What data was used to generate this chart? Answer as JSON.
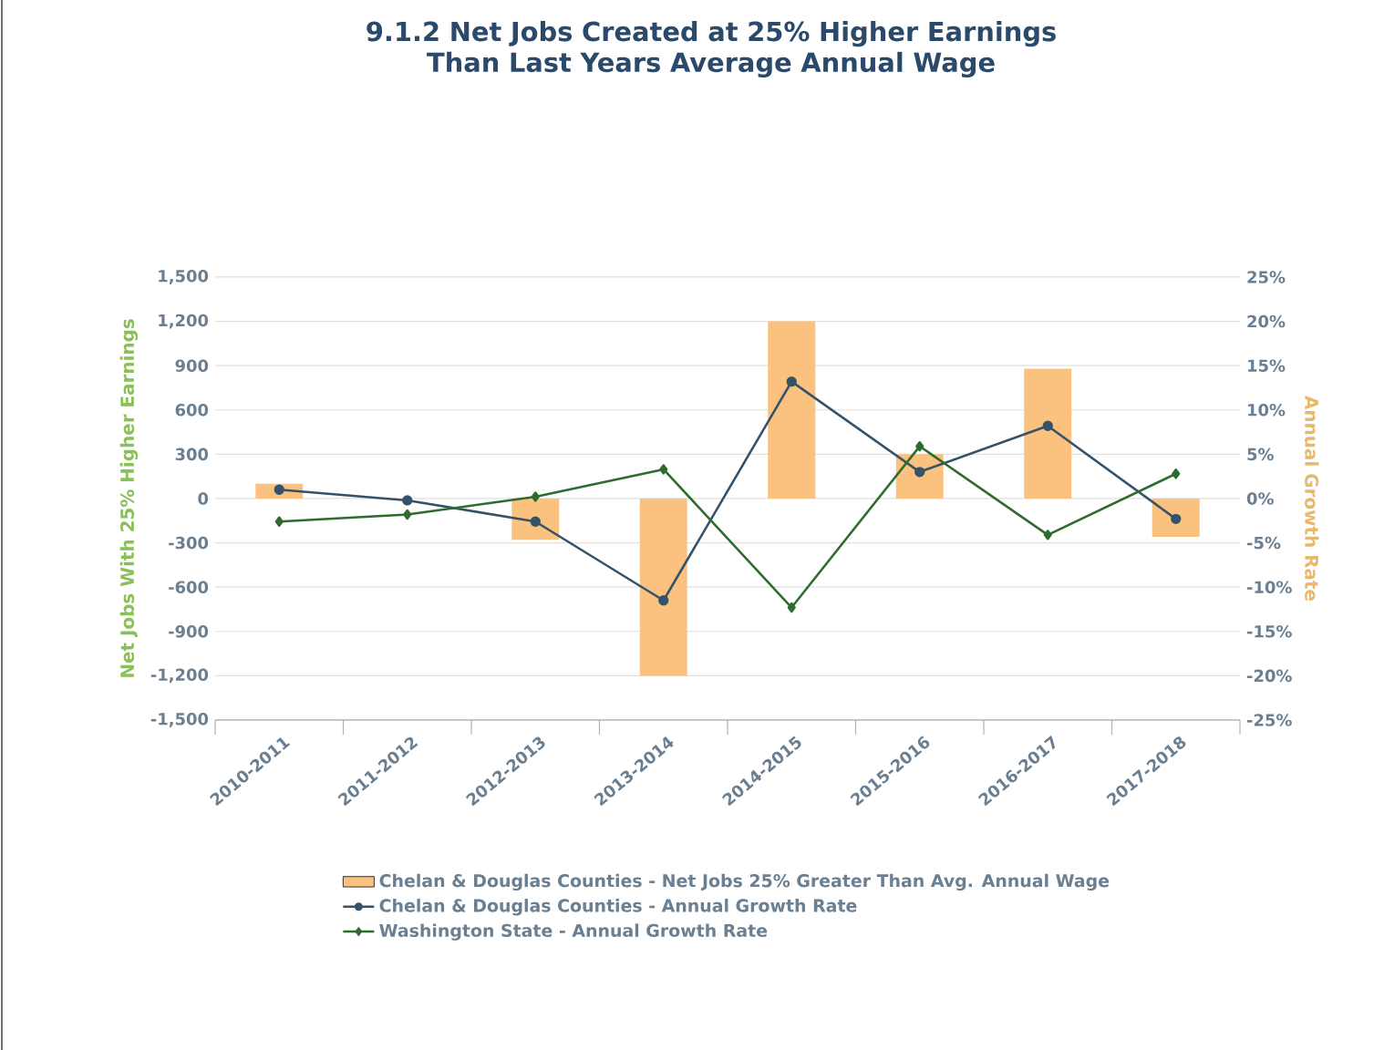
{
  "chart_data": {
    "type": "bar",
    "title": "9.1.2 Net Jobs Created at 25% Higher Earnings Than Last Years Average Annual Wage",
    "ylabel": "Net Jobs With 25% Higher Earnings",
    "y2label": "Annual Growth Rate",
    "categories": [
      "2010-2011",
      "2011-2012",
      "2012-2013",
      "2013-2014",
      "2014-2015",
      "2015-2016",
      "2016-2017",
      "2017-2018"
    ],
    "series": [
      {
        "name": "Chelan & Douglas Counties - Net Jobs 25% Greater Than Avg. Annual Wage",
        "axis": "y",
        "color": "#fbc27f",
        "values": [
          100,
          0,
          -280,
          -1200,
          1200,
          300,
          880,
          -260
        ]
      },
      {
        "name": "Chelan & Douglas Counties - Annual Growth Rate",
        "type": "line",
        "axis": "y2",
        "color": "#34536b",
        "marker": "circle",
        "values": [
          1.0,
          -0.2,
          -2.6,
          -11.5,
          13.2,
          3.0,
          8.2,
          -2.3
        ]
      },
      {
        "name": "Washington State - Annual Growth Rate",
        "type": "line",
        "axis": "y2",
        "color": "#2e6b2e",
        "marker": "diamond",
        "values": [
          -2.6,
          -1.8,
          0.2,
          3.3,
          -12.3,
          5.9,
          -4.1,
          2.8
        ]
      }
    ],
    "ylim": [
      -1500,
      1500
    ],
    "yticks": [
      {
        "value": -1500,
        "label": "-1,500"
      },
      {
        "value": -1200,
        "label": "-1,200"
      },
      -900,
      -600,
      -300,
      0,
      300,
      600,
      900,
      {
        "value": 1200,
        "label": "1,200"
      },
      {
        "value": 1500,
        "label": "1,500"
      }
    ],
    "y2lim": [
      -25,
      25
    ],
    "y2ticks": [
      {
        "value": -25,
        "label": "-25%"
      },
      {
        "value": -20,
        "label": "-20%"
      },
      {
        "value": -15,
        "label": "-15%"
      },
      {
        "value": -10,
        "label": "-10%"
      },
      {
        "value": -5,
        "label": "-5%"
      },
      {
        "value": 0,
        "label": "0%"
      },
      {
        "value": 5,
        "label": "5%"
      },
      {
        "value": 10,
        "label": "10%"
      },
      {
        "value": 15,
        "label": "15%"
      },
      {
        "value": 20,
        "label": "20%"
      },
      {
        "value": 25,
        "label": "25%"
      }
    ],
    "grid": "y",
    "legend": "bottom"
  }
}
